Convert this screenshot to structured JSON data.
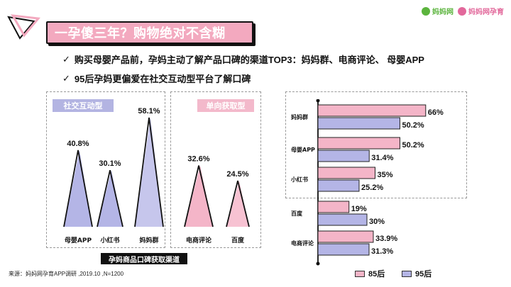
{
  "header": {
    "title": "一孕傻三年？购物绝对不含糊",
    "brand_left": "妈妈网",
    "brand_right": "妈妈网孕育",
    "bullets": [
      "购买母婴产品前，孕妈主动了解产品口碑的渠道TOP3：妈妈群、电商评论、 母婴APP",
      "95后孕妈更偏爱在社交互动型平台了解口碑"
    ],
    "check": "✓"
  },
  "colors": {
    "pink": "#f4b5c8",
    "purple": "#b4b5e6",
    "title_bg": "#f3a9bf"
  },
  "triangle_chart": {
    "group_labels": [
      "社交互动型",
      "单向获取型"
    ],
    "bottom_label": "孕妈商品口碑获取渠道",
    "items": [
      {
        "label": "母婴APP",
        "value": "40.8%",
        "v": 40.8,
        "group": 0
      },
      {
        "label": "小红书",
        "value": "30.1%",
        "v": 30.1,
        "group": 0
      },
      {
        "label": "妈妈群",
        "value": "58.1%",
        "v": 58.1,
        "group": 0
      },
      {
        "label": "电商评论",
        "value": "32.6%",
        "v": 32.6,
        "group": 1
      },
      {
        "label": "百度",
        "value": "24.5%",
        "v": 24.5,
        "group": 1
      }
    ]
  },
  "chart_data": {
    "type": "bar",
    "orientation": "horizontal",
    "categories": [
      "妈妈群",
      "母婴APP",
      "小红书",
      "百度",
      "电商评论"
    ],
    "series": [
      {
        "name": "85后",
        "values": [
          66,
          50.2,
          35,
          19,
          33.9
        ],
        "labels": [
          "66%",
          "50.2%",
          "35%",
          "19%",
          "33.9%"
        ]
      },
      {
        "name": "95后",
        "values": [
          50.2,
          31.4,
          25.2,
          30,
          31.3
        ],
        "labels": [
          "50.2%",
          "31.4%",
          "25.2%",
          "30%",
          "31.3%"
        ]
      }
    ],
    "xlim": [
      0,
      100
    ],
    "legend": "bottom"
  },
  "source": "来源：妈妈网孕育APP调研 ,2019.10 ,N=1200"
}
